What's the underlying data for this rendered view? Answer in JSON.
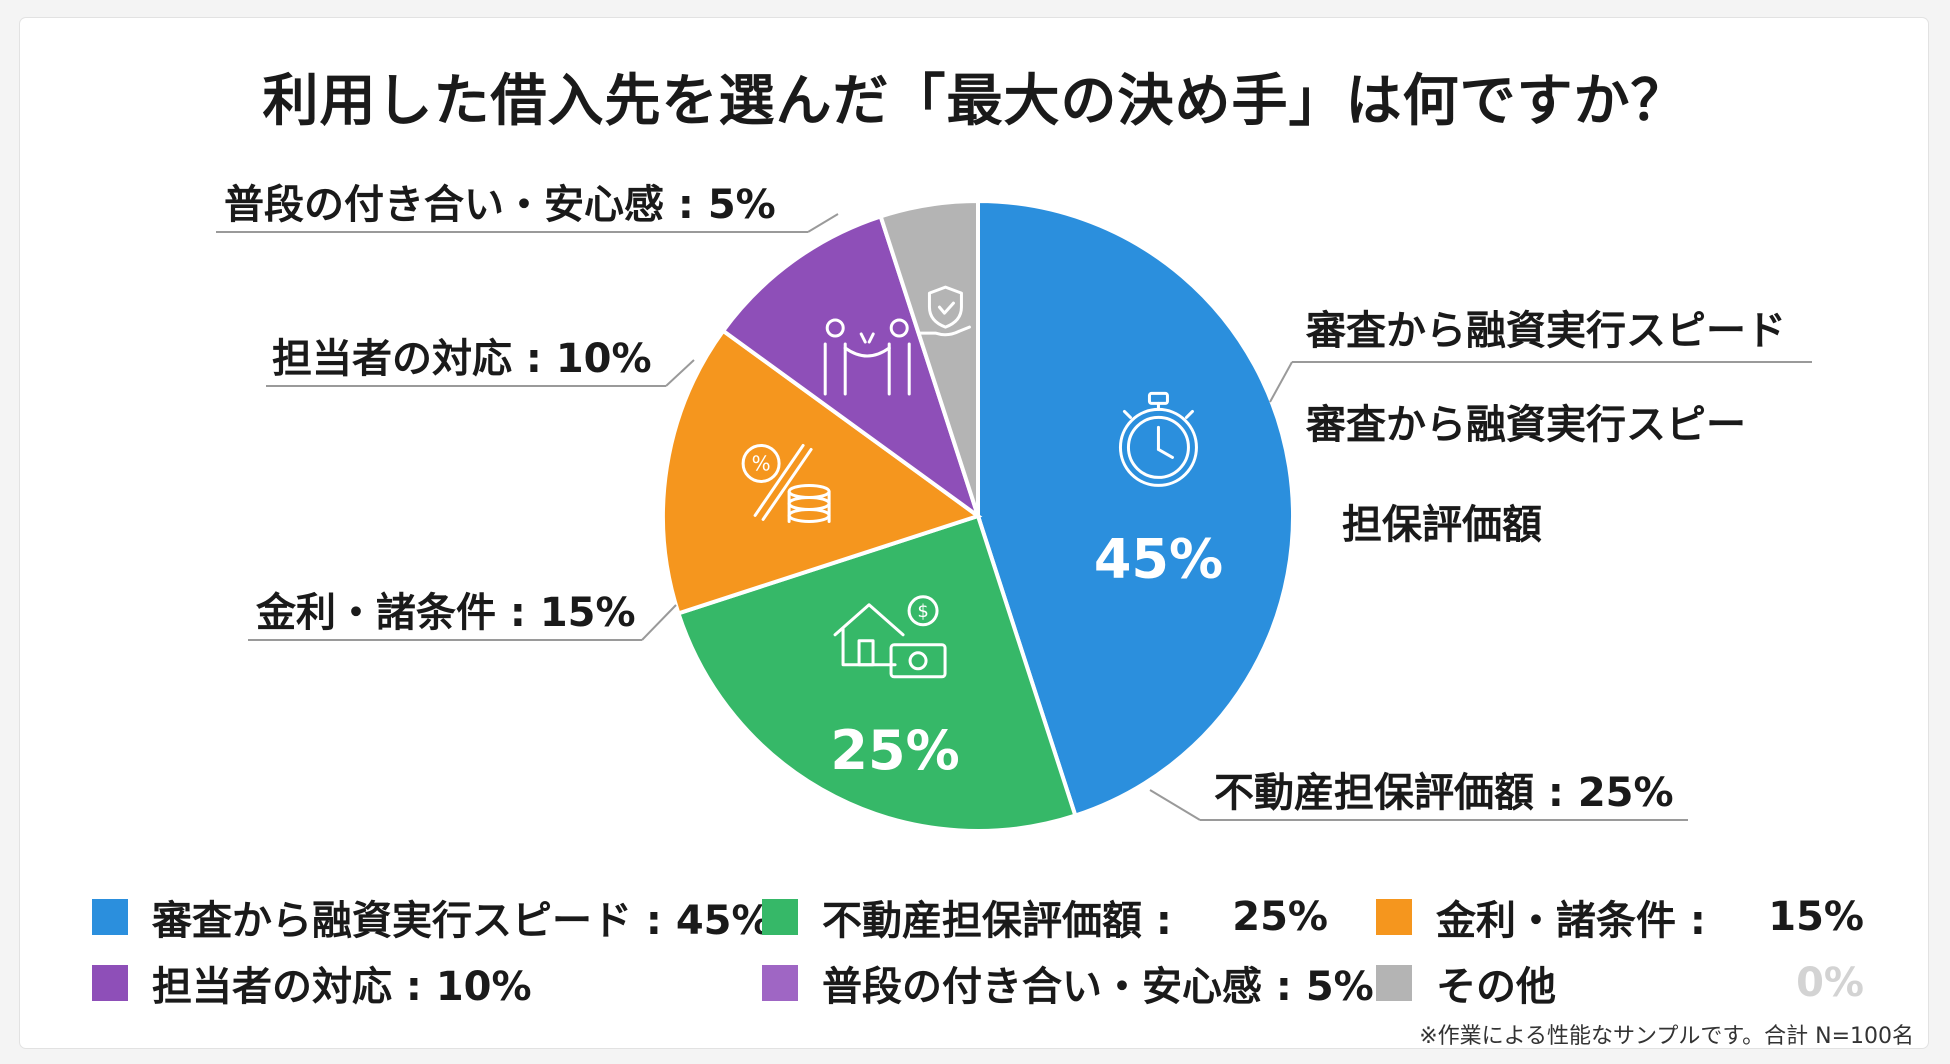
{
  "chart_data": {
    "type": "pie",
    "title": "利用した借入先を選んだ「最大の決め手」は何ですか？",
    "slices": [
      {
        "label": "審査から融資実行スピード",
        "value": 45,
        "color": "#2b8fdd",
        "inner_label": "45%",
        "icon": "stopwatch-icon"
      },
      {
        "label": "不動産担保評価額",
        "value": 25,
        "color": "#36b868",
        "inner_label": "25%",
        "icon": "house-money-icon"
      },
      {
        "label": "金利・諸条件",
        "value": 15,
        "color": "#f5961e",
        "icon": "percent-coins-icon"
      },
      {
        "label": "担当者の対応",
        "value": 10,
        "color": "#8e4fb8",
        "icon": "handshake-icon"
      },
      {
        "label": "普段の付き合い・安心感",
        "value": 5,
        "color": "#b4b4b4",
        "icon": "shield-hand-icon"
      }
    ],
    "callouts": {
      "speed_line1": "審査から融資実行スピード",
      "speed_line2": "審査から融資実行スピー",
      "speed_line3": "担保評価額",
      "real_estate": "不動産担保評価額 : 25%",
      "interest": "金利・諸条件 : 15%",
      "staff": "担当者の対応 : 10%",
      "relationship": "普段の付き合い・安心感 : 5%"
    },
    "legend": [
      {
        "label": "審査から融資実行スピード : 45%",
        "value": "",
        "color": "#2b8fdd"
      },
      {
        "label": "不動産担保評価額 :",
        "value": "25%",
        "color": "#36b868"
      },
      {
        "label": "金利・諸条件 :",
        "value": "15%",
        "color": "#f5961e"
      },
      {
        "label": "担当者の対応 : 10%",
        "value": "",
        "color": "#8e4fb8"
      },
      {
        "label": "普段の付き合い・安心感 : 5%",
        "value": "",
        "color": "#9f66c4"
      },
      {
        "label": "その他",
        "value": "0%",
        "color": "#b4b4b4"
      }
    ],
    "footnote": "※作業による性能なサンプルです。合計 N=100名"
  }
}
